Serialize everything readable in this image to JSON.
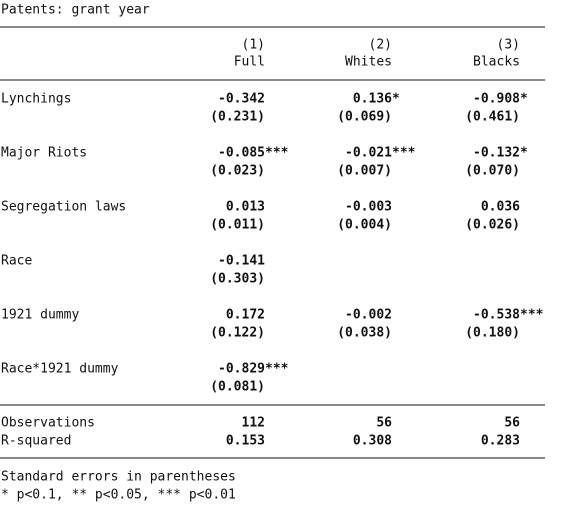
{
  "title": "Patents: grant year",
  "columns": [
    {
      "number": "(1)",
      "name": "Full"
    },
    {
      "number": "(2)",
      "name": "Whites"
    },
    {
      "number": "(3)",
      "name": "Blacks"
    }
  ],
  "rows": [
    {
      "label": "Lynchings",
      "coef": [
        "-0.342",
        "0.136*",
        "-0.908*"
      ],
      "se": [
        "(0.231)",
        "(0.069)",
        "(0.461)"
      ]
    },
    {
      "label": "Major Riots",
      "coef": [
        "-0.085***",
        "-0.021***",
        "-0.132*"
      ],
      "se": [
        "(0.023)",
        "(0.007)",
        "(0.070)"
      ]
    },
    {
      "label": "Segregation laws",
      "coef": [
        "0.013",
        "-0.003",
        "0.036"
      ],
      "se": [
        "(0.011)",
        "(0.004)",
        "(0.026)"
      ]
    },
    {
      "label": "Race",
      "coef": [
        "-0.141",
        null,
        null
      ],
      "se": [
        "(0.303)",
        null,
        null
      ]
    },
    {
      "label": "1921 dummy",
      "coef": [
        "0.172",
        "-0.002",
        "-0.538***"
      ],
      "se": [
        "(0.122)",
        "(0.038)",
        "(0.180)"
      ]
    },
    {
      "label": "Race*1921 dummy",
      "coef": [
        "-0.829***",
        null,
        null
      ],
      "se": [
        "(0.081)",
        null,
        null
      ]
    }
  ],
  "stats": [
    {
      "label": "Observations",
      "values": [
        "112",
        "56",
        "56"
      ]
    },
    {
      "label": "R-squared",
      "values": [
        "0.153",
        "0.308",
        "0.283"
      ]
    }
  ],
  "notes": [
    "Standard errors in parentheses",
    "* p<0.1, ** p<0.05, *** p<0.01"
  ]
}
